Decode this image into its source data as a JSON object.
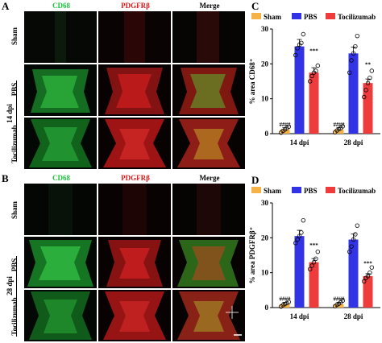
{
  "panels": {
    "A": {
      "letter": "A",
      "columns": [
        "CD68",
        "PDGFRβ",
        "Merge"
      ],
      "rows": [
        "Sham",
        "PBS",
        "Tocilizumab"
      ],
      "group_label": "14 dpi"
    },
    "B": {
      "letter": "B",
      "columns": [
        "CD68",
        "PDGFRβ",
        "Merge"
      ],
      "rows": [
        "Sham",
        "PBS",
        "Tocilizumab"
      ],
      "group_label": "28 dpi"
    }
  },
  "chart_data": [
    {
      "type": "bar",
      "panel": "C",
      "categories": [
        "14 dpi",
        "28 dpi"
      ],
      "series": [
        {
          "name": "Sham",
          "values": [
            1.2,
            1.2
          ],
          "color": "#f5b347"
        },
        {
          "name": "PBS",
          "values": [
            25,
            23
          ],
          "color": "#3333e6"
        },
        {
          "name": "Tocilizumab",
          "values": [
            17.5,
            14.5
          ],
          "color": "#ee3b3b"
        }
      ],
      "ylabel": "% area CD68⁺",
      "ylim": [
        0,
        30
      ],
      "yticks": [
        "0",
        "10",
        "20",
        "30"
      ],
      "annotations": [
        {
          "category": 0,
          "series": 0,
          "text": "####"
        },
        {
          "category": 0,
          "series": 2,
          "text": "***"
        },
        {
          "category": 1,
          "series": 0,
          "text": "####"
        },
        {
          "category": 1,
          "series": 2,
          "text": "**"
        }
      ],
      "points": [
        [
          [
            0.3,
            0.8,
            1.2,
            1.6,
            2.0
          ],
          [
            22.5,
            24.5,
            25.5,
            26.0,
            28.5
          ],
          [
            15.0,
            16.5,
            17.5,
            18.0,
            19.5
          ]
        ],
        [
          [
            0.4,
            0.9,
            1.3,
            1.6,
            2.1
          ],
          [
            17.5,
            21.0,
            23.0,
            25.0,
            28.0
          ],
          [
            10.5,
            12.5,
            14.5,
            16.0,
            18.0
          ]
        ]
      ],
      "legend": "top"
    },
    {
      "type": "bar",
      "panel": "D",
      "categories": [
        "14 dpi",
        "28 dpi"
      ],
      "series": [
        {
          "name": "Sham",
          "values": [
            1.0,
            1.0
          ],
          "color": "#f5b347"
        },
        {
          "name": "PBS",
          "values": [
            20.5,
            19.5
          ],
          "color": "#3333e6"
        },
        {
          "name": "Tocilizumab",
          "values": [
            13,
            9
          ],
          "color": "#ee3b3b"
        }
      ],
      "ylabel": "% area PDGFRβ⁺",
      "ylim": [
        0,
        30
      ],
      "yticks": [
        "0",
        "10",
        "20",
        "30"
      ],
      "annotations": [
        {
          "category": 0,
          "series": 0,
          "text": "####"
        },
        {
          "category": 0,
          "series": 2,
          "text": "***"
        },
        {
          "category": 1,
          "series": 0,
          "text": "####"
        },
        {
          "category": 1,
          "series": 2,
          "text": "***"
        }
      ],
      "points": [
        [
          [
            0.3,
            0.7,
            1.0,
            1.3,
            1.6
          ],
          [
            18.5,
            19.5,
            20.5,
            21.5,
            25.0
          ],
          [
            11.0,
            12.0,
            13.0,
            14.0,
            16.0
          ]
        ],
        [
          [
            0.4,
            0.8,
            1.1,
            1.5,
            2.0
          ],
          [
            16.0,
            17.5,
            19.5,
            21.0,
            23.5
          ],
          [
            7.5,
            8.5,
            9.0,
            10.0,
            11.5
          ]
        ]
      ],
      "legend": "top"
    }
  ],
  "letters": {
    "C": "C",
    "D": "D"
  },
  "colors": {
    "cd68": "#19c43a",
    "pdgfrb": "#e01919"
  }
}
